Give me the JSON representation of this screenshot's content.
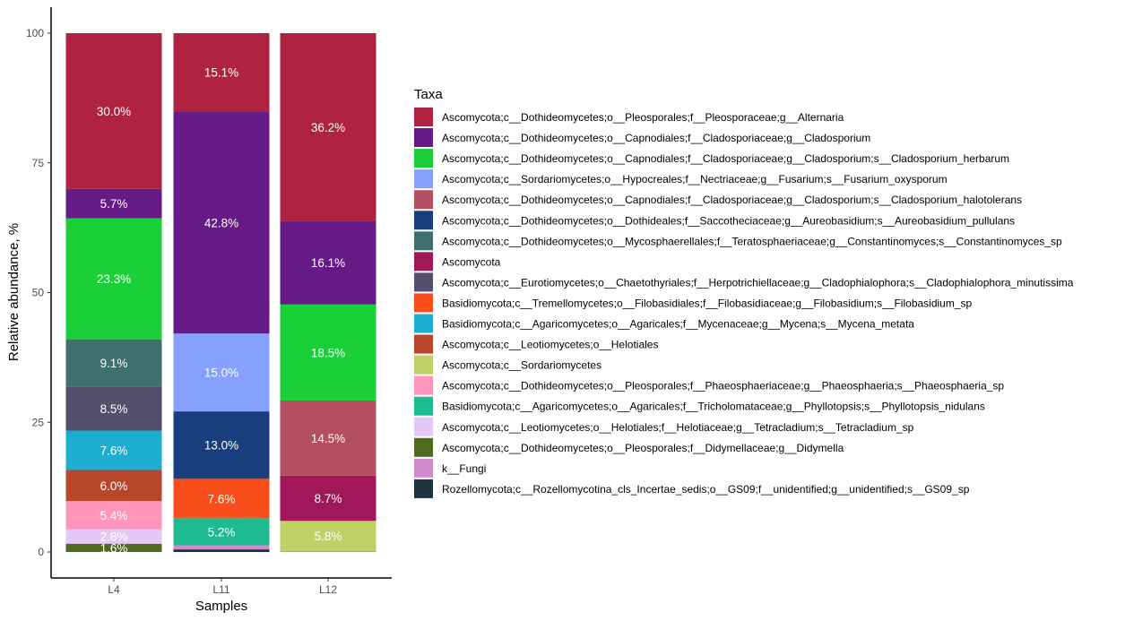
{
  "chart_data": {
    "type": "bar",
    "stacked": true,
    "categories": [
      "L4",
      "L11",
      "L12"
    ],
    "xlabel": "Samples",
    "ylabel": "Relative abundance, %",
    "ylim": [
      0,
      100
    ],
    "yticks": [
      0,
      25,
      50,
      75,
      100
    ],
    "legend_title": "Taxa",
    "legend_position": "right",
    "grid": false,
    "series": [
      {
        "name": "Ascomycota;c__Dothideomycetes;o__Pleosporales;f__Pleosporaceae;g__Alternaria",
        "color": "#AF2341",
        "values": [
          30.0,
          15.1,
          36.2
        ],
        "labels": [
          "30.0%",
          "15.1%",
          "36.2%"
        ]
      },
      {
        "name": "Ascomycota;c__Dothideomycetes;o__Capnodiales;f__Cladosporiaceae;g__Cladosporium",
        "color": "#661A86",
        "values": [
          5.7,
          42.8,
          16.1
        ],
        "labels": [
          "5.7%",
          "42.8%",
          "16.1%"
        ]
      },
      {
        "name": "Ascomycota;c__Dothideomycetes;o__Capnodiales;f__Cladosporiaceae;g__Cladosporium;s__Cladosporium_herbarum",
        "color": "#1BCF39",
        "values": [
          23.3,
          0,
          18.5
        ],
        "labels": [
          "23.3%",
          "",
          "18.5%"
        ]
      },
      {
        "name": "Ascomycota;c__Sordariomycetes;o__Hypocreales;f__Nectriaceae;g__Fusarium;s__Fusarium_oxysporum",
        "color": "#86A1FD",
        "values": [
          0,
          15.0,
          0
        ],
        "labels": [
          "",
          "15.0%",
          ""
        ]
      },
      {
        "name": "Ascomycota;c__Dothideomycetes;o__Capnodiales;f__Cladosporiaceae;g__Cladosporium;s__Cladosporium_halotolerans",
        "color": "#B44F61",
        "values": [
          0,
          0,
          14.5
        ],
        "labels": [
          "",
          "",
          "14.5%"
        ]
      },
      {
        "name": "Ascomycota;c__Dothideomycetes;o__Dothideales;f__Saccotheciaceae;g__Aureobasidium;s__Aureobasidium_pullulans",
        "color": "#193E7E",
        "values": [
          0,
          13.0,
          0
        ],
        "labels": [
          "",
          "13.0%",
          ""
        ]
      },
      {
        "name": "Ascomycota;c__Dothideomycetes;o__Mycosphaerellales;f__Teratosphaeriaceae;g__Constantinomyces;s__Constantinomyces_sp",
        "color": "#3F706D",
        "values": [
          9.1,
          0,
          0
        ],
        "labels": [
          "9.1%",
          "",
          ""
        ]
      },
      {
        "name": "Ascomycota",
        "color": "#A0175A",
        "values": [
          0,
          0,
          8.7
        ],
        "labels": [
          "",
          "",
          "8.7%"
        ]
      },
      {
        "name": "Ascomycota;c__Eurotiomycetes;o__Chaetothyriales;f__Herpotrichiellaceae;g__Cladophialophora;s__Cladophialophora_minutissima",
        "color": "#52506D",
        "values": [
          8.5,
          0,
          0
        ],
        "labels": [
          "8.5%",
          "",
          ""
        ]
      },
      {
        "name": "Basidiomycota;c__Tremellomycetes;o__Filobasidiales;f__Filobasidiaceae;g__Filobasidium;s__Filobasidium_sp",
        "color": "#FB4F1B",
        "values": [
          0,
          7.6,
          0
        ],
        "labels": [
          "",
          "7.6%",
          ""
        ]
      },
      {
        "name": "Basidiomycota;c__Agaricomycetes;o__Agaricales;f__Mycenaceae;g__Mycena;s__Mycena_metata",
        "color": "#1CADD0",
        "values": [
          7.6,
          0,
          0
        ],
        "labels": [
          "7.6%",
          "",
          ""
        ]
      },
      {
        "name": "Ascomycota;c__Leotiomycetes;o__Helotiales",
        "color": "#B8462A",
        "values": [
          6.0,
          0,
          0
        ],
        "labels": [
          "6.0%",
          "",
          ""
        ]
      },
      {
        "name": "Ascomycota;c__Sordariomycetes",
        "color": "#BFD064",
        "values": [
          0,
          0,
          5.8
        ],
        "labels": [
          "",
          "",
          "5.8%"
        ]
      },
      {
        "name": "Ascomycota;c__Dothideomycetes;o__Pleosporales;f__Phaeosphaeriaceae;g__Phaeosphaeria;s__Phaeosphaeria_sp",
        "color": "#FD96BA",
        "values": [
          5.4,
          0,
          0
        ],
        "labels": [
          "5.4%",
          "",
          ""
        ]
      },
      {
        "name": "Basidiomycota;c__Agaricomycetes;o__Agaricales;f__Tricholomataceae;g__Phyllotopsis;s__Phyllotopsis_nidulans",
        "color": "#1DBB8F",
        "values": [
          0,
          5.2,
          0
        ],
        "labels": [
          "",
          "5.2%",
          ""
        ]
      },
      {
        "name": "Ascomycota;c__Leotiomycetes;o__Helotiales;f__Helotiaceae;g__Tetracladium;s__Tetracladium_sp",
        "color": "#E3C8F8",
        "values": [
          2.8,
          0,
          0
        ],
        "labels": [
          "2.8%",
          "",
          ""
        ]
      },
      {
        "name": "Ascomycota;c__Dothideomycetes;o__Pleosporales;f__Didymellaceae;g__Didymella",
        "color": "#4F6B1E",
        "values": [
          1.6,
          0,
          0
        ],
        "labels": [
          "1.6%",
          "",
          ""
        ]
      },
      {
        "name": "k__Fungi",
        "color": "#D08BCF",
        "values": [
          0,
          0.8,
          0.2
        ],
        "labels": [
          "",
          "",
          ""
        ]
      },
      {
        "name": "Rozellomycota;c__Rozellomycotina_cls_Incertae_sedis;o__GS09;f__unidentified;g__unidentified;s__GS09_sp",
        "color": "#1C323C",
        "values": [
          0,
          0.5,
          0
        ],
        "labels": [
          "",
          "",
          ""
        ]
      }
    ]
  }
}
